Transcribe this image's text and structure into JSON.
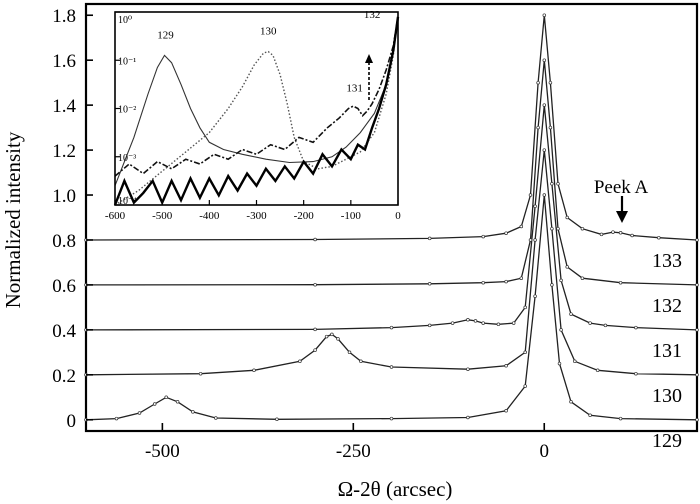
{
  "chart_data": [
    {
      "type": "line",
      "title": "",
      "xlabel": "Ω-2θ (arcsec)",
      "ylabel": "Normalized intensity",
      "xlim": [
        -600,
        200
      ],
      "ylim": [
        -0.05,
        1.85
      ],
      "x_ticks": [
        -500,
        -250,
        0
      ],
      "y_ticks": [
        0,
        0.2,
        0.4,
        0.6,
        0.8,
        1.0,
        1.2,
        1.4,
        1.6,
        1.8
      ],
      "x_tick_labels": [
        "-500",
        "-250",
        "0"
      ],
      "y_tick_labels": [
        "0",
        "0.2",
        "0.4",
        "0.6",
        "0.8",
        "1.0",
        "1.2",
        "1.4",
        "1.6",
        "1.8"
      ],
      "grid": false,
      "series": [
        {
          "name": "129",
          "offset": 0.0,
          "points": [
            [
              -600,
              0.0
            ],
            [
              -560,
              0.005
            ],
            [
              -530,
              0.03
            ],
            [
              -510,
              0.07
            ],
            [
              -495,
              0.1
            ],
            [
              -480,
              0.08
            ],
            [
              -460,
              0.035
            ],
            [
              -430,
              0.008
            ],
            [
              -350,
              0.002
            ],
            [
              -200,
              0.005
            ],
            [
              -100,
              0.01
            ],
            [
              -50,
              0.04
            ],
            [
              -25,
              0.15
            ],
            [
              -12,
              0.55
            ],
            [
              0,
              1.0
            ],
            [
              10,
              0.6
            ],
            [
              20,
              0.25
            ],
            [
              35,
              0.08
            ],
            [
              60,
              0.02
            ],
            [
              100,
              0.005
            ],
            [
              200,
              0.0
            ]
          ]
        },
        {
          "name": "130",
          "offset": 0.2,
          "points": [
            [
              -600,
              0.2
            ],
            [
              -450,
              0.205
            ],
            [
              -380,
              0.22
            ],
            [
              -320,
              0.26
            ],
            [
              -300,
              0.31
            ],
            [
              -285,
              0.37
            ],
            [
              -278,
              0.38
            ],
            [
              -270,
              0.36
            ],
            [
              -255,
              0.3
            ],
            [
              -240,
              0.26
            ],
            [
              -200,
              0.235
            ],
            [
              -100,
              0.225
            ],
            [
              -50,
              0.24
            ],
            [
              -25,
              0.3
            ],
            [
              -12,
              0.8
            ],
            [
              0,
              1.2
            ],
            [
              10,
              0.85
            ],
            [
              22,
              0.4
            ],
            [
              40,
              0.26
            ],
            [
              70,
              0.22
            ],
            [
              120,
              0.205
            ],
            [
              200,
              0.2
            ]
          ]
        },
        {
          "name": "131",
          "offset": 0.4,
          "points": [
            [
              -600,
              0.4
            ],
            [
              -300,
              0.402
            ],
            [
              -200,
              0.41
            ],
            [
              -150,
              0.42
            ],
            [
              -120,
              0.43
            ],
            [
              -100,
              0.445
            ],
            [
              -90,
              0.44
            ],
            [
              -80,
              0.43
            ],
            [
              -60,
              0.425
            ],
            [
              -40,
              0.43
            ],
            [
              -25,
              0.5
            ],
            [
              -12,
              0.95
            ],
            [
              0,
              1.4
            ],
            [
              10,
              1.05
            ],
            [
              22,
              0.62
            ],
            [
              35,
              0.47
            ],
            [
              60,
              0.43
            ],
            [
              80,
              0.42
            ],
            [
              120,
              0.41
            ],
            [
              200,
              0.4
            ]
          ]
        },
        {
          "name": "132",
          "offset": 0.6,
          "points": [
            [
              -600,
              0.6
            ],
            [
              -300,
              0.601
            ],
            [
              -150,
              0.605
            ],
            [
              -80,
              0.61
            ],
            [
              -50,
              0.615
            ],
            [
              -30,
              0.63
            ],
            [
              -18,
              0.8
            ],
            [
              -8,
              1.3
            ],
            [
              0,
              1.6
            ],
            [
              8,
              1.3
            ],
            [
              18,
              0.85
            ],
            [
              30,
              0.68
            ],
            [
              50,
              0.63
            ],
            [
              100,
              0.61
            ],
            [
              200,
              0.6
            ]
          ]
        },
        {
          "name": "133",
          "offset": 0.8,
          "points": [
            [
              -600,
              0.8
            ],
            [
              -300,
              0.802
            ],
            [
              -150,
              0.807
            ],
            [
              -80,
              0.815
            ],
            [
              -50,
              0.83
            ],
            [
              -30,
              0.86
            ],
            [
              -18,
              1.0
            ],
            [
              -8,
              1.5
            ],
            [
              0,
              1.8
            ],
            [
              8,
              1.5
            ],
            [
              18,
              1.05
            ],
            [
              30,
              0.9
            ],
            [
              50,
              0.85
            ],
            [
              75,
              0.825
            ],
            [
              90,
              0.835
            ],
            [
              100,
              0.832
            ],
            [
              115,
              0.82
            ],
            [
              150,
              0.81
            ],
            [
              200,
              0.8
            ]
          ]
        }
      ],
      "curve_labels": [
        "133",
        "132",
        "131",
        "130",
        "129"
      ],
      "annotation": {
        "text": "Peek A",
        "x": 95,
        "y": 0.835
      }
    },
    {
      "type": "line",
      "title": "",
      "scale": "log",
      "xlim": [
        -600,
        0
      ],
      "ylim_exp": [
        -4,
        0
      ],
      "x_ticks": [
        -600,
        -500,
        -400,
        -300,
        -200,
        -100,
        0
      ],
      "x_tick_labels": [
        "-600",
        "-500",
        "-400",
        "-300",
        "-200",
        "-100",
        "0"
      ],
      "y_tick_labels": [
        "10⁰",
        "10⁻¹",
        "10⁻²",
        "10⁻³",
        "10⁻⁴"
      ],
      "series": [
        {
          "name": "129",
          "style": "thin",
          "points_log10": [
            [
              -600,
              -3.6
            ],
            [
              -560,
              -2.6
            ],
            [
              -530,
              -1.7
            ],
            [
              -510,
              -1.15
            ],
            [
              -495,
              -0.9
            ],
            [
              -480,
              -1.05
            ],
            [
              -460,
              -1.5
            ],
            [
              -440,
              -2.0
            ],
            [
              -420,
              -2.4
            ],
            [
              -400,
              -2.7
            ],
            [
              -370,
              -2.85
            ],
            [
              -330,
              -2.95
            ],
            [
              -280,
              -3.05
            ],
            [
              -230,
              -3.12
            ],
            [
              -180,
              -3.1
            ],
            [
              -140,
              -3.0
            ],
            [
              -110,
              -2.8
            ],
            [
              -80,
              -2.5
            ],
            [
              -50,
              -2.1
            ],
            [
              -25,
              -1.5
            ],
            [
              -10,
              -0.8
            ],
            [
              0,
              -0.1
            ]
          ]
        },
        {
          "name": "130",
          "style": "dotted",
          "points_log10": [
            [
              -600,
              -4.0
            ],
            [
              -550,
              -3.7
            ],
            [
              -500,
              -3.3
            ],
            [
              -450,
              -2.9
            ],
            [
              -400,
              -2.5
            ],
            [
              -360,
              -2.0
            ],
            [
              -330,
              -1.55
            ],
            [
              -305,
              -1.1
            ],
            [
              -285,
              -0.85
            ],
            [
              -275,
              -0.82
            ],
            [
              -265,
              -0.9
            ],
            [
              -250,
              -1.3
            ],
            [
              -235,
              -1.9
            ],
            [
              -220,
              -2.6
            ],
            [
              -200,
              -3.1
            ],
            [
              -170,
              -3.25
            ],
            [
              -140,
              -3.2
            ],
            [
              -110,
              -3.05
            ],
            [
              -80,
              -2.9
            ],
            [
              -50,
              -2.5
            ],
            [
              -25,
              -1.7
            ],
            [
              -10,
              -0.9
            ],
            [
              0,
              -0.1
            ]
          ]
        },
        {
          "name": "131",
          "style": "dashdot",
          "points_log10": [
            [
              -600,
              -3.4
            ],
            [
              -570,
              -3.15
            ],
            [
              -540,
              -3.35
            ],
            [
              -510,
              -3.1
            ],
            [
              -480,
              -3.25
            ],
            [
              -450,
              -3.05
            ],
            [
              -420,
              -3.15
            ],
            [
              -390,
              -2.95
            ],
            [
              -360,
              -3.05
            ],
            [
              -330,
              -2.85
            ],
            [
              -300,
              -2.95
            ],
            [
              -270,
              -2.75
            ],
            [
              -240,
              -2.85
            ],
            [
              -210,
              -2.6
            ],
            [
              -180,
              -2.7
            ],
            [
              -150,
              -2.4
            ],
            [
              -125,
              -2.2
            ],
            [
              -105,
              -2.0
            ],
            [
              -95,
              -1.95
            ],
            [
              -85,
              -2.0
            ],
            [
              -75,
              -2.15
            ],
            [
              -65,
              -2.05
            ],
            [
              -55,
              -1.9
            ],
            [
              -40,
              -1.6
            ],
            [
              -25,
              -1.2
            ],
            [
              -10,
              -0.7
            ],
            [
              0,
              -0.1
            ]
          ]
        },
        {
          "name": "132",
          "style": "thick",
          "points_log10": [
            [
              -600,
              -4.0
            ],
            [
              -580,
              -3.5
            ],
            [
              -560,
              -3.95
            ],
            [
              -540,
              -3.75
            ],
            [
              -520,
              -3.5
            ],
            [
              -500,
              -3.95
            ],
            [
              -480,
              -3.5
            ],
            [
              -460,
              -3.9
            ],
            [
              -440,
              -3.45
            ],
            [
              -420,
              -3.85
            ],
            [
              -400,
              -3.45
            ],
            [
              -380,
              -3.8
            ],
            [
              -360,
              -3.4
            ],
            [
              -340,
              -3.7
            ],
            [
              -320,
              -3.35
            ],
            [
              -300,
              -3.6
            ],
            [
              -280,
              -3.25
            ],
            [
              -260,
              -3.5
            ],
            [
              -240,
              -3.2
            ],
            [
              -220,
              -3.45
            ],
            [
              -200,
              -3.1
            ],
            [
              -180,
              -3.35
            ],
            [
              -160,
              -2.95
            ],
            [
              -140,
              -3.2
            ],
            [
              -120,
              -2.85
            ],
            [
              -100,
              -3.05
            ],
            [
              -85,
              -2.75
            ],
            [
              -70,
              -2.85
            ],
            [
              -55,
              -2.4
            ],
            [
              -40,
              -2.0
            ],
            [
              -25,
              -1.5
            ],
            [
              -10,
              -0.8
            ],
            [
              0,
              -0.1
            ]
          ]
        }
      ],
      "peak_labels": [
        "129",
        "130",
        "131",
        "132"
      ]
    }
  ]
}
